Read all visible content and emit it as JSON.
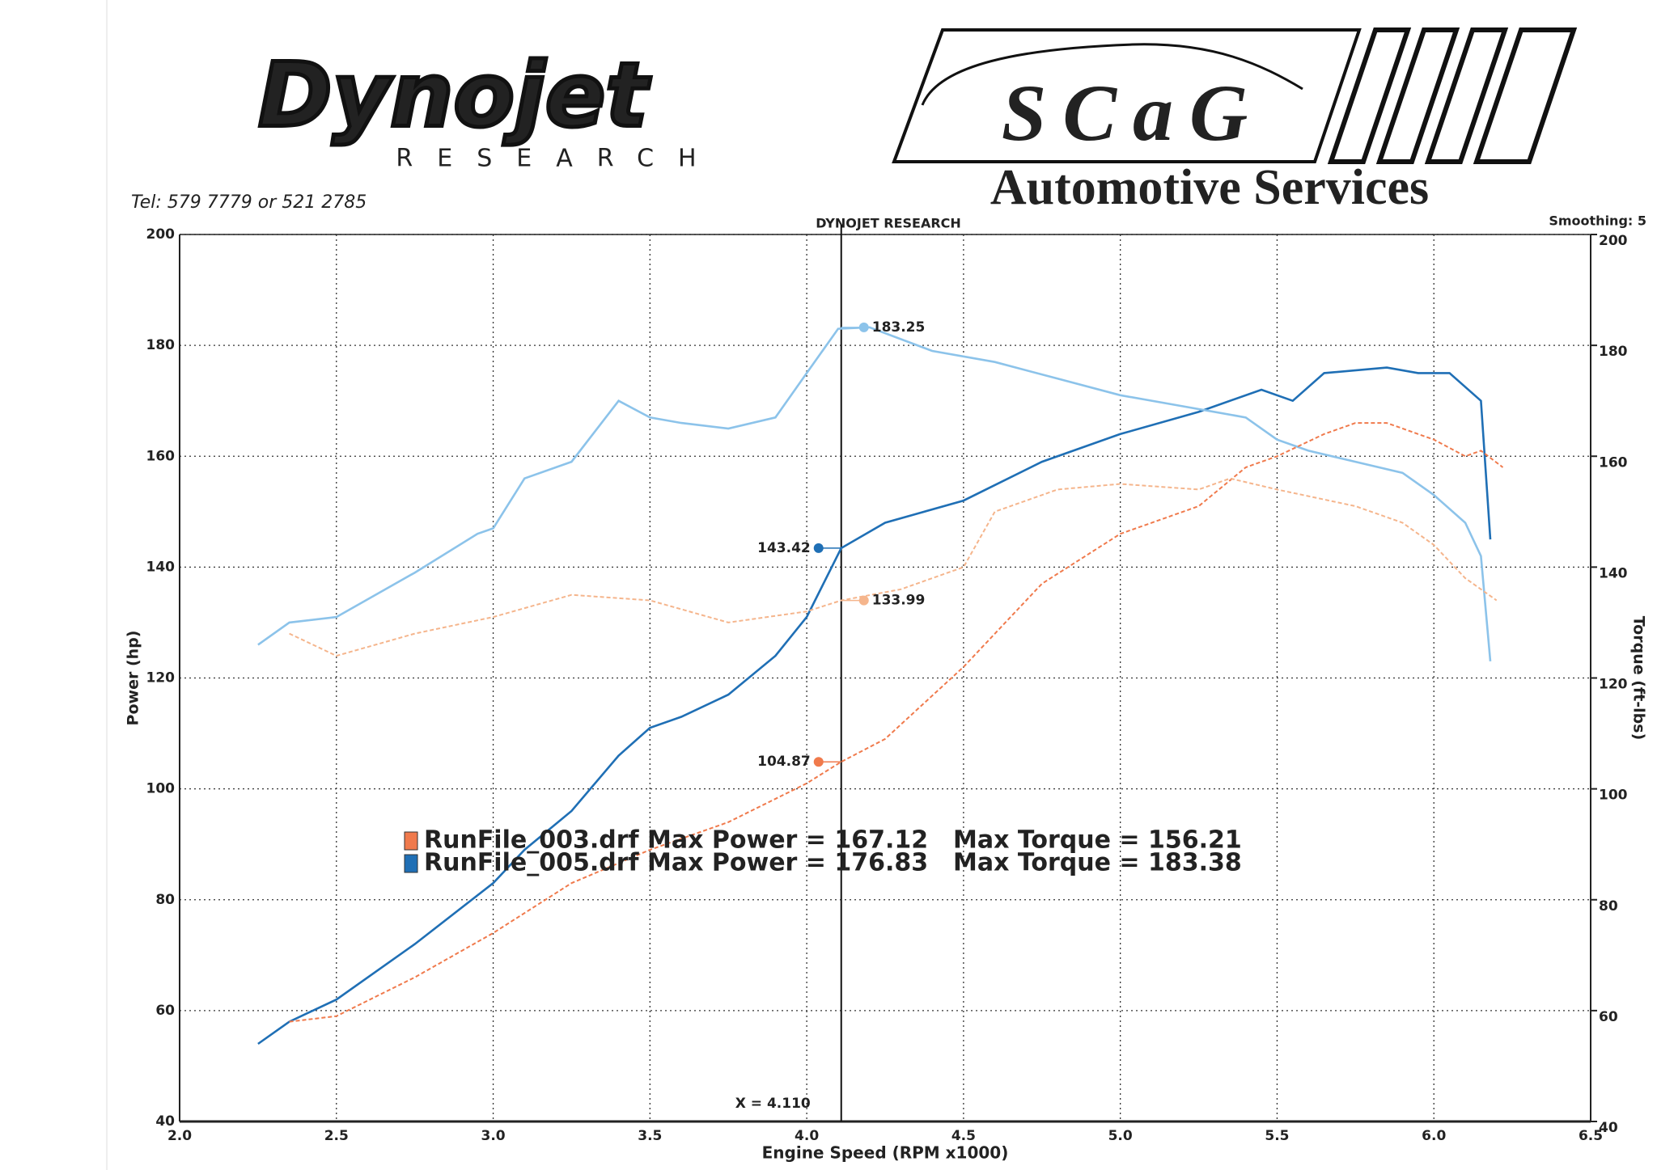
{
  "header": {
    "brand": "Dynojet",
    "brand_sub": "RESEARCH",
    "phone": "Tel: 579 7779 or 521 2785",
    "shop": "SCaG",
    "shop_sub": "Automotive Services"
  },
  "chart_data": {
    "type": "line",
    "title": "DYNOJET RESEARCH",
    "note": "Smoothing: 5",
    "x_label": "Engine Speed (RPM x1000)",
    "y_label": "Power (hp)",
    "y2_label": "Torque (ft-lbs)",
    "xlim": [
      2.0,
      6.5
    ],
    "xticks": [
      {
        "value": 2,
        "label": "2.0"
      },
      2.5,
      {
        "value": 3,
        "label": "3.0"
      },
      3.5,
      {
        "value": 4,
        "label": "4.0"
      },
      4.5,
      {
        "value": 5,
        "label": "5.0"
      },
      5.5,
      {
        "value": 6,
        "label": "6.0"
      },
      6.5
    ],
    "ylim": [
      40,
      200
    ],
    "yticks": [
      40,
      60,
      80,
      100,
      120,
      140,
      160,
      180,
      200
    ],
    "y2lim": [
      40,
      200
    ],
    "y2ticks": [
      40,
      60,
      80,
      100,
      120,
      140,
      160,
      180,
      200
    ],
    "grid": true,
    "cursor_x": 4.11,
    "cursor_label": "X = 4.110",
    "series": [
      {
        "color": "#1f6fb5",
        "dash": false,
        "axis": "y",
        "cursor_value": 143.42,
        "x": [
          2.25,
          2.35,
          2.5,
          2.75,
          3.0,
          3.1,
          3.25,
          3.4,
          3.5,
          3.6,
          3.75,
          3.9,
          4.0,
          4.11,
          4.25,
          4.5,
          4.75,
          5.0,
          5.25,
          5.45,
          5.55,
          5.65,
          5.85,
          5.95,
          6.05,
          6.15,
          6.18
        ],
        "values": [
          54,
          58,
          62,
          72,
          83,
          89,
          96,
          106,
          111,
          113,
          117,
          124,
          131,
          143.42,
          148,
          152,
          159,
          164,
          168,
          172,
          170,
          175,
          176,
          175,
          175,
          170,
          145
        ]
      },
      {
        "color": "#8cc3ea",
        "dash": false,
        "axis": "y2",
        "cursor_value": 183.25,
        "x": [
          2.25,
          2.35,
          2.5,
          2.75,
          2.95,
          3.0,
          3.1,
          3.25,
          3.4,
          3.5,
          3.6,
          3.75,
          3.9,
          4.0,
          4.1,
          4.2,
          4.4,
          4.6,
          4.8,
          5.0,
          5.2,
          5.4,
          5.5,
          5.6,
          5.75,
          5.9,
          6.0,
          6.1,
          6.15,
          6.18
        ],
        "values": [
          126,
          130,
          131,
          139,
          146,
          147,
          156,
          159,
          170,
          167,
          166,
          165,
          167,
          175,
          183,
          183.25,
          179,
          177,
          174,
          171,
          169,
          167,
          163,
          161,
          159,
          157,
          153,
          148,
          142,
          123
        ]
      },
      {
        "color": "#f07a4c",
        "dash": true,
        "axis": "y",
        "cursor_value": 104.87,
        "x": [
          2.35,
          2.5,
          2.75,
          3.0,
          3.25,
          3.5,
          3.75,
          4.0,
          4.11,
          4.25,
          4.5,
          4.75,
          5.0,
          5.25,
          5.4,
          5.5,
          5.65,
          5.75,
          5.85,
          6.0,
          6.1,
          6.15,
          6.22
        ],
        "values": [
          58,
          59,
          66,
          74,
          83,
          89,
          94,
          101,
          104.87,
          109,
          122,
          137,
          146,
          151,
          158,
          160,
          164,
          166,
          166,
          163,
          160,
          161,
          158
        ]
      },
      {
        "color": "#f5b58c",
        "dash": true,
        "axis": "y2",
        "cursor_value": 133.99,
        "x": [
          2.35,
          2.5,
          2.75,
          3.0,
          3.25,
          3.5,
          3.75,
          4.0,
          4.11,
          4.3,
          4.5,
          4.6,
          4.8,
          5.0,
          5.25,
          5.35,
          5.5,
          5.75,
          5.9,
          6.0,
          6.1,
          6.2
        ],
        "values": [
          128,
          124,
          128,
          131,
          135,
          134,
          130,
          132,
          133.99,
          136,
          140,
          150,
          154,
          155,
          154,
          156,
          154,
          151,
          148,
          144,
          138,
          134
        ]
      }
    ],
    "legend": [
      {
        "color": "#f07a4c",
        "text": "RunFile_003.drf Max Power = 167.12",
        "torque_text": "Max Torque = 156.21"
      },
      {
        "color": "#1f6fb5",
        "text": "RunFile_005.drf Max Power = 176.83",
        "torque_text": "Max Torque = 183.38"
      }
    ]
  }
}
